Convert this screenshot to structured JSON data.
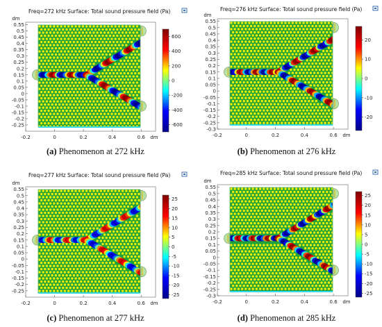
{
  "chart_data": [
    {
      "type": "heatmap",
      "title": "Freq=272 kHz Surface: Total sound pressure field (Pa)",
      "caption_label": "(a)",
      "caption_text": "Phenomenon at 272 kHz",
      "axis_unit": "dm",
      "xlim": [
        -0.2,
        0.7
      ],
      "ylim": [
        -0.3,
        0.57
      ],
      "xticks": [
        -0.2,
        0,
        0.2,
        0.4,
        0.6
      ],
      "xtick_labels": [
        "-0.2",
        "0",
        "0.2",
        "0.4",
        "0.6"
      ],
      "yticks": [
        0.55,
        0.5,
        0.45,
        0.4,
        0.35,
        0.3,
        0.25,
        0.2,
        0.15,
        0.1,
        0.05,
        0,
        -0.05,
        -0.1,
        -0.15,
        -0.2,
        -0.25
      ],
      "ytick_labels": [
        "0.55",
        "0.5",
        "0.45",
        "0.4",
        "0.35",
        "0.3",
        "0.25",
        "0.2",
        "0.15",
        "0.1",
        "0.05",
        "0",
        "-0.05",
        "-0.1",
        "-0.15",
        "-0.2",
        "-0.25"
      ],
      "colorbar_range": [
        -700,
        700
      ],
      "colorbar_ticks": [
        600,
        400,
        200,
        0,
        -200,
        -400,
        -600
      ],
      "colorbar_tick_labels": [
        "600",
        "400",
        "200",
        "0",
        "-200",
        "-400",
        "-600"
      ],
      "pattern": "y-splitter"
    },
    {
      "type": "heatmap",
      "title": "Freq=276 kHz Surface: Total sound pressure field (Pa)",
      "caption_label": "(b)",
      "caption_text": "Phenomenon at 276 kHz",
      "axis_unit": "dm",
      "xlim": [
        -0.2,
        0.7
      ],
      "ylim": [
        -0.3,
        0.57
      ],
      "xticks": [
        -0.2,
        0,
        0.2,
        0.4,
        0.6
      ],
      "xtick_labels": [
        "-0.2",
        "0",
        "0.2",
        "0.4",
        "0.6"
      ],
      "yticks": [
        0.55,
        0.5,
        0.45,
        0.4,
        0.35,
        0.3,
        0.25,
        0.2,
        0.15,
        0.1,
        0.05,
        0,
        -0.05,
        -0.1,
        -0.15,
        -0.2,
        -0.25,
        -0.3
      ],
      "ytick_labels": [
        "0.55",
        "0.5",
        "0.45",
        "0.4",
        "0.35",
        "0.3",
        "0.25",
        "0.2",
        "0.15",
        "0.1",
        "0.05",
        "0",
        "-0.05",
        "-0.1",
        "-0.15",
        "-0.2",
        "-0.25",
        "-0.3"
      ],
      "colorbar_range": [
        -27,
        27
      ],
      "colorbar_ticks": [
        20,
        10,
        0,
        -10,
        -20
      ],
      "colorbar_tick_labels": [
        "20",
        "10",
        "0",
        "-10",
        "-20"
      ],
      "pattern": "y-splitter"
    },
    {
      "type": "heatmap",
      "title": "Freq=277 kHz Surface: Total sound pressure field (Pa)",
      "caption_label": "(c)",
      "caption_text": "Phenomenon at 277 kHz",
      "axis_unit": "dm",
      "xlim": [
        -0.2,
        0.7
      ],
      "ylim": [
        -0.3,
        0.57
      ],
      "xticks": [
        -0.2,
        0,
        0.2,
        0.4,
        0.6
      ],
      "xtick_labels": [
        "-0.2",
        "0",
        "0.2",
        "0.4",
        "0.6"
      ],
      "yticks": [
        0.55,
        0.5,
        0.45,
        0.4,
        0.35,
        0.3,
        0.25,
        0.2,
        0.15,
        0.1,
        0.05,
        0,
        -0.05,
        -0.1,
        -0.15,
        -0.2,
        -0.25
      ],
      "ytick_labels": [
        "0.55",
        "0.5",
        "0.45",
        "0.4",
        "0.35",
        "0.3",
        "0.25",
        "0.2",
        "0.15",
        "0.1",
        "0.05",
        "0",
        "-0.05",
        "-0.1",
        "-0.15",
        "-0.2",
        "-0.25"
      ],
      "colorbar_range": [
        -27,
        27
      ],
      "colorbar_ticks": [
        25,
        20,
        15,
        10,
        5,
        0,
        -5,
        -10,
        -15,
        -20,
        -25
      ],
      "colorbar_tick_labels": [
        "25",
        "20",
        "15",
        "10",
        "5",
        "0",
        "-5",
        "-10",
        "-15",
        "-20",
        "-25"
      ],
      "pattern": "y-splitter"
    },
    {
      "type": "heatmap",
      "title": "Freq=285 kHz Surface: Total sound pressure field (Pa)",
      "caption_label": "(d)",
      "caption_text": "Phenomenon at 285 kHz",
      "axis_unit": "dm",
      "xlim": [
        -0.2,
        0.7
      ],
      "ylim": [
        -0.3,
        0.57
      ],
      "xticks": [
        -0.2,
        0,
        0.2,
        0.4,
        0.6
      ],
      "xtick_labels": [
        "-0.2",
        "0",
        "0.2",
        "0.4",
        "0.6"
      ],
      "yticks": [
        0.55,
        0.5,
        0.45,
        0.4,
        0.35,
        0.3,
        0.25,
        0.2,
        0.15,
        0.1,
        0.05,
        0,
        -0.05,
        -0.1,
        -0.15,
        -0.2,
        -0.25,
        -0.3
      ],
      "ytick_labels": [
        "0.55",
        "0.5",
        "0.45",
        "0.4",
        "0.35",
        "0.3",
        "0.25",
        "0.2",
        "0.15",
        "0.1",
        "0.05",
        "0",
        "-0.05",
        "-0.1",
        "-0.15",
        "-0.2",
        "-0.25",
        "-0.3"
      ],
      "colorbar_range": [
        -27,
        27
      ],
      "colorbar_ticks": [
        25,
        20,
        15,
        10,
        5,
        0,
        -5,
        -10,
        -15,
        -20,
        -25
      ],
      "colorbar_tick_labels": [
        "25",
        "20",
        "15",
        "10",
        "5",
        "0",
        "-5",
        "-10",
        "-15",
        "-20",
        "-25"
      ],
      "pattern": "y-splitter"
    }
  ],
  "colors": {
    "background_field": "#22a33a",
    "hole": "#f4f000",
    "colormap": [
      "#000088",
      "#0000ff",
      "#00ffff",
      "#ffff00",
      "#ff0000",
      "#800000"
    ]
  },
  "icons": [
    "expand-icon"
  ]
}
